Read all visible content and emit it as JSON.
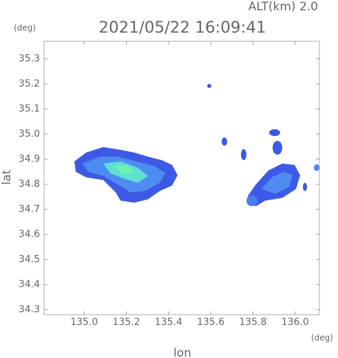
{
  "chart_data": {
    "type": "radar-map",
    "title": "2021/05/22 16:09:41",
    "subtitle": "ALT(km) 2.0",
    "x_label": "lon",
    "y_label": "lat",
    "x_unit": "(deg)",
    "y_unit": "(deg)",
    "xlim": [
      134.81,
      136.115
    ],
    "ylim": [
      34.28,
      35.37
    ],
    "xticks": [
      {
        "value": 135,
        "label": "135.0"
      },
      135.2,
      135.4,
      135.6,
      135.8,
      {
        "value": 136,
        "label": "136.0"
      }
    ],
    "yticks": [
      34.3,
      34.4,
      34.5,
      34.6,
      34.7,
      34.8,
      34.9,
      {
        "value": 35,
        "label": "35.0"
      },
      35.1,
      35.2,
      35.3
    ]
  }
}
